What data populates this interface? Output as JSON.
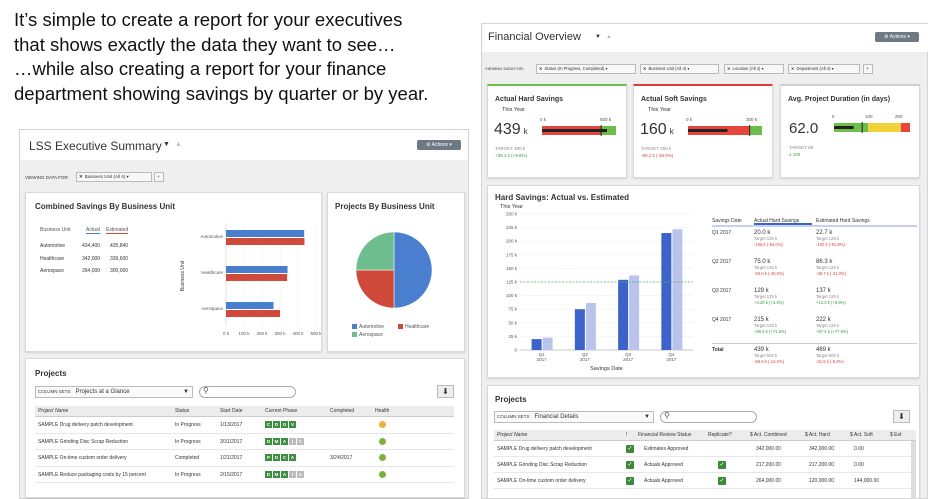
{
  "caption": {
    "line1": "It’s simple to create a report for your executives",
    "line2": "that shows exactly the data they want to see…",
    "line3": "…while also creating a report for your finance",
    "line4": "department showing savings by quarter or by year."
  },
  "exec": {
    "title": "LSS Executive Summary",
    "actions": "Actions",
    "viewing_label": "VIEWING DATA FOR:",
    "filter1": "Business Unit (All 4)",
    "combined": {
      "title": "Combined Savings By Business Unit",
      "col_bu": "Business Unit",
      "col_actual": "Actual",
      "col_est": "Estimated",
      "rows": [
        {
          "bu": "Automotive",
          "actual": "434,400",
          "est": "435,840"
        },
        {
          "bu": "Healthcare",
          "actual": "342,000",
          "est": "339,600"
        },
        {
          "bu": "Aerospace",
          "actual": "264,000",
          "est": "300,000"
        }
      ],
      "ylabel": "Business Unit",
      "cats": [
        "Automotive",
        "Healthcare",
        "Aerospace"
      ],
      "ticks": [
        "0 k",
        "100 k",
        "200 k",
        "300 k",
        "400 k",
        "500 k"
      ]
    },
    "pie": {
      "title": "Projects By Business Unit",
      "legend": [
        "Automotive",
        "Healthcare",
        "Aerospace"
      ]
    },
    "projects": {
      "title": "Projects",
      "colsets_label": "COLUMN SETS",
      "colset": "Projects at a Glance",
      "headers": [
        "Project Name",
        "Status",
        "Start Date",
        "Current Phase",
        "Completed",
        "Health"
      ],
      "rows": [
        {
          "name": "SAMPLE Drug delivery patch development",
          "status": "In Progress",
          "start": "1/13/2017",
          "phase": [
            "C",
            "D",
            "O",
            "V"
          ],
          "completed": "",
          "health": "#e7b13a"
        },
        {
          "name": "SAMPLE Grinding Disc Scrap Reduction",
          "status": "In Progress",
          "start": "3/31/2017",
          "phase": [
            "D",
            "M",
            "A",
            "I",
            "C"
          ],
          "completed": "",
          "health": "#7db23a"
        },
        {
          "name": "SAMPLE On-time custom order delivery",
          "status": "Completed",
          "start": "1/21/2017",
          "phase": [
            "P",
            "D",
            "C",
            "A"
          ],
          "completed": "3/24/2017",
          "health": "#7db23a"
        },
        {
          "name": "SAMPLE Reduce packaging costs by 15 percent",
          "status": "In Progress",
          "start": "2/15/2017",
          "phase": [
            "D",
            "M",
            "A",
            "I",
            "C"
          ],
          "completed": "",
          "health": "#7db23a"
        }
      ]
    }
  },
  "fin": {
    "title": "Financial Overview",
    "actions": "Actions",
    "viewing_label": "VIEWING DATA FOR:",
    "filters": [
      "Status (In Progress, Completed)",
      "Business Unit (All 4)",
      "Location (All 4)",
      "Department (All 4)"
    ],
    "kpi": [
      {
        "title": "Actual Hard Savings",
        "sub": "This Year",
        "value": "439",
        "unit": "k",
        "target": "TARGET 400 k",
        "delta": "+39.1 k (+9.8%)",
        "ticks": [
          "0 k",
          "500 k"
        ],
        "color": "#6dbf4b"
      },
      {
        "title": "Actual Soft Savings",
        "sub": "This Year",
        "value": "160",
        "unit": "k",
        "target": "TARGET 250 k",
        "delta": "-90.1 k (-36.0%)",
        "ticks": [
          "0 k",
          "300 k"
        ],
        "color": "#d9413c"
      },
      {
        "title": "Avg. Project Duration (in days)",
        "sub": "",
        "value": "62.0",
        "unit": "",
        "target": "TARGET 89",
        "delta": "± 100",
        "ticks": [
          "0",
          "100",
          "200"
        ],
        "color": "#d9d9d9"
      }
    ],
    "hard": {
      "title": "Hard Savings: Actual vs. Estimated",
      "sub": "This Year",
      "xlabel": "Savings Date",
      "yticks": [
        "0",
        "25 k",
        "50 k",
        "75 k",
        "100 k",
        "125 k",
        "150 k",
        "175 k",
        "200 k",
        "225 k",
        "250 k"
      ],
      "table_headers": [
        "Savings Date",
        "Actual Hard Savings",
        "Estimated Hard Savings"
      ],
      "rows": [
        {
          "q": "Q1 2017",
          "a": "20.0 k",
          "at": "Target 125 k",
          "ad": "-105 k (-84.0%)",
          "e": "22.7 k",
          "et": "Target 125 k",
          "ed": "-102 k (-81.8%)"
        },
        {
          "q": "Q2 2017",
          "a": "75.0 k",
          "at": "Target 125 k",
          "ad": "-50.0 k (-40.0%)",
          "e": "86.3 k",
          "et": "Target 125 k",
          "ed": "-38.7 k (-31.0%)"
        },
        {
          "q": "Q3 2017",
          "a": "129 k",
          "at": "Target 125 k",
          "ad": "+4.20 k (+3.4%)",
          "e": "137 k",
          "et": "Target 125 k",
          "ed": "+12.3 k (+9.8%)"
        },
        {
          "q": "Q4 2017",
          "a": "215 k",
          "at": "Target 125 k",
          "ad": "+89.8 k (+71.8%)",
          "e": "222 k",
          "et": "Target 125 k",
          "ed": "+97.4 k (+77.9%)"
        },
        {
          "q": "Total",
          "a": "439 k",
          "at": "Target 500 k",
          "ad": "-60.9 k (-12.2%)",
          "e": "469 k",
          "et": "Target 500 k",
          "ed": "-31.5 k (-6.3%)"
        }
      ]
    },
    "projects": {
      "title": "Projects",
      "colsets_label": "COLUMN SETS",
      "colset": "Financial Details",
      "headers": [
        "Project Name",
        "!",
        "Financial Review Status",
        "Replicate?",
        "$ Act. Combined",
        "$ Act. Hard",
        "$ Act. Soft",
        "$ Est"
      ],
      "rows": [
        {
          "name": "SAMPLE Drug delivery patch development",
          "status": "Estimates Approved",
          "rep": false,
          "comb": "342,000.00",
          "hard": "342,000.00",
          "soft": "0.00"
        },
        {
          "name": "SAMPLE Grinding Disc Scrap Reduction",
          "status": "Actuals Approved",
          "rep": true,
          "comb": "217,200.00",
          "hard": "217,200.00",
          "soft": "0.00"
        },
        {
          "name": "SAMPLE On-time custom order delivery",
          "status": "Actuals Approved",
          "rep": true,
          "comb": "264,000.00",
          "hard": "120,000.00",
          "soft": "144,000.00"
        }
      ]
    }
  },
  "chart_data": [
    {
      "type": "bar",
      "title": "Combined Savings By Business Unit",
      "categories": [
        "Automotive",
        "Healthcare",
        "Aerospace"
      ],
      "ylabel": "Business Unit",
      "xlim": [
        0,
        500000
      ],
      "series": [
        {
          "name": "Actual",
          "values": [
            434400,
            342000,
            264000
          ],
          "color": "#4a7fd0"
        },
        {
          "name": "Estimated",
          "values": [
            435840,
            339600,
            300000
          ],
          "color": "#d04a3b"
        }
      ]
    },
    {
      "type": "pie",
      "title": "Projects By Business Unit",
      "categories": [
        "Automotive",
        "Healthcare",
        "Aerospace"
      ],
      "values": [
        2,
        1,
        1
      ],
      "colors": [
        "#4a7fd0",
        "#d04a3b",
        "#6dbd8f"
      ]
    },
    {
      "type": "bar",
      "title": "Hard Savings: Actual vs. Estimated",
      "categories": [
        "Q1 2017",
        "Q2 2017",
        "Q3 2017",
        "Q4 2017"
      ],
      "xlabel": "Savings Date",
      "ylim": [
        0,
        250000
      ],
      "target": 125000,
      "series": [
        {
          "name": "Actual Hard Savings",
          "values": [
            20000,
            75000,
            129000,
            215000
          ],
          "color": "#3b63c9"
        },
        {
          "name": "Estimated Hard Savings",
          "values": [
            22700,
            86300,
            137000,
            222000
          ],
          "color": "#b9c3ec"
        }
      ]
    }
  ]
}
